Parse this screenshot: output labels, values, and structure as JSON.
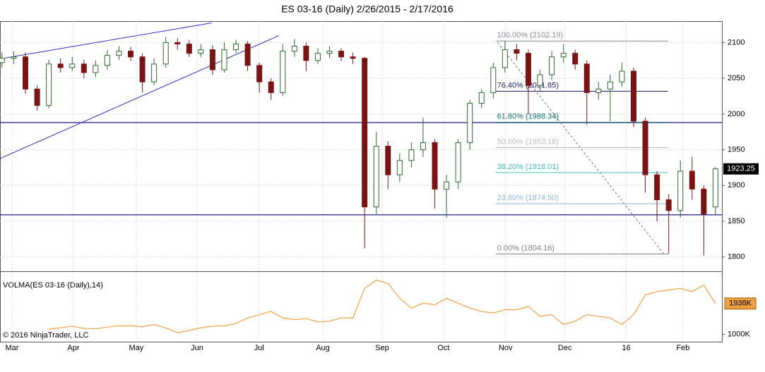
{
  "chart_data": [
    {
      "type": "candlestick",
      "title": "ES 03-16 (Daily)  2/26/2015 - 2/17/2016",
      "up_color": "#2a6a2a",
      "down_color": "#7a1414",
      "xlim": [
        -0.7,
        246.2
      ],
      "x": [
        0,
        4,
        8,
        12,
        16,
        20,
        24,
        28,
        32,
        36,
        40,
        44,
        48,
        52,
        56,
        60,
        64,
        68,
        72,
        76,
        80,
        84,
        88,
        92,
        96,
        100,
        104,
        108,
        112,
        116,
        120,
        124,
        128,
        132,
        136,
        140,
        144,
        148,
        152,
        156,
        160,
        164,
        168,
        172,
        176,
        180,
        184,
        188,
        192,
        196,
        200,
        204,
        208,
        212,
        216,
        220,
        224,
        228,
        232,
        236,
        240,
        244
      ],
      "open": [
        2072,
        2078,
        2080,
        2035,
        2012,
        2070,
        2065,
        2070,
        2058,
        2068,
        2082,
        2088,
        2080,
        2045,
        2070,
        2100,
        2098,
        2085,
        2090,
        2062,
        2090,
        2098,
        2068,
        2045,
        2030,
        2088,
        2095,
        2075,
        2085,
        2088,
        2080,
        2078,
        1870,
        1955,
        1915,
        1935,
        1950,
        1960,
        1895,
        1905,
        1960,
        2015,
        2030,
        2065,
        2090,
        2085,
        2040,
        2055,
        2080,
        2085,
        2070,
        2030,
        2035,
        2045,
        2060,
        1990,
        1915,
        1880,
        1865,
        1920,
        1895,
        1870
      ],
      "high": [
        2086,
        2088,
        2086,
        2040,
        2076,
        2078,
        2080,
        2076,
        2075,
        2090,
        2095,
        2094,
        2085,
        2078,
        2108,
        2106,
        2104,
        2098,
        2096,
        2100,
        2104,
        2102,
        2072,
        2050,
        2098,
        2105,
        2100,
        2092,
        2095,
        2092,
        2086,
        2080,
        1975,
        1962,
        1945,
        1960,
        1995,
        1965,
        1915,
        1965,
        2020,
        2035,
        2072,
        2102.19,
        2098,
        2090,
        2062,
        2088,
        2098,
        2090,
        2075,
        2045,
        2055,
        2072,
        2065,
        1995,
        1920,
        1888,
        1935,
        1940,
        1900,
        1926
      ],
      "low": [
        2065,
        2070,
        2028,
        2005,
        2008,
        2058,
        2060,
        2050,
        2052,
        2062,
        2076,
        2074,
        2030,
        2040,
        2065,
        2090,
        2080,
        2080,
        2055,
        2058,
        2085,
        2060,
        2030,
        2020,
        2025,
        2080,
        2060,
        2070,
        2078,
        2074,
        2070,
        1812,
        1860,
        1895,
        1905,
        1925,
        1940,
        1868,
        1855,
        1895,
        1950,
        2008,
        2022,
        2058,
        2075,
        2000,
        2032,
        2048,
        2072,
        2062,
        1985,
        2020,
        1990,
        2038,
        1982,
        1890,
        1850,
        1804.16,
        1855,
        1880,
        1802,
        1860
      ],
      "close": [
        2078,
        2080,
        2035,
        2012,
        2070,
        2065,
        2070,
        2058,
        2068,
        2082,
        2088,
        2080,
        2045,
        2070,
        2100,
        2098,
        2085,
        2090,
        2062,
        2090,
        2098,
        2068,
        2045,
        2030,
        2088,
        2095,
        2075,
        2085,
        2088,
        2080,
        2078,
        1870,
        1955,
        1915,
        1935,
        1950,
        1960,
        1895,
        1905,
        1960,
        2015,
        2030,
        2065,
        2090,
        2085,
        2040,
        2055,
        2080,
        2085,
        2070,
        2030,
        2035,
        2045,
        2060,
        1990,
        1915,
        1880,
        1865,
        1920,
        1895,
        1860,
        1923.25
      ],
      "ylim": [
        1780,
        2130
      ],
      "yticks": [
        1800,
        1850,
        1900,
        1950,
        2000,
        2050,
        2100
      ],
      "grid": true,
      "hlines": [
        {
          "y": 1988,
          "color": "#1a1a8a"
        },
        {
          "y": 1859,
          "color": "#1a1a8a"
        }
      ],
      "trendlines": [
        {
          "x": [
            -0.7,
            94.7
          ],
          "y": [
            1937.7,
            2109.8
          ],
          "color": "#3030c0"
        },
        {
          "x": [
            1,
            71.7
          ],
          "y": [
            2078.4,
            2127.5
          ],
          "color": "#3030c0"
        },
        {
          "x": [
            169.5,
            226.3
          ],
          "y": [
            2100,
            1804.16
          ],
          "color": "#707070"
        }
      ],
      "fib_range": [
        168.8,
        227.8
      ],
      "fib_levels": [
        {
          "label": "100.00% (2102.19)",
          "price": 2102.19,
          "color": "#8a8aa0"
        },
        {
          "label": "76.40% (2031.85)",
          "price": 2031.85,
          "color": "#20206a"
        },
        {
          "label": "61.80% (1988.34)",
          "price": 1988.34,
          "color": "#107070"
        },
        {
          "label": "50.00% (1953.18)",
          "price": 1953.18,
          "color": "#b8b8b8"
        },
        {
          "label": "38.20% (1918.01)",
          "price": 1918.01,
          "color": "#40bcc0"
        },
        {
          "label": "23.60% (1874.50)",
          "price": 1874.5,
          "color": "#88b4d4"
        },
        {
          "label": "0.00% (1804.16)",
          "price": 1804.16,
          "color": "#808080"
        }
      ]
    },
    {
      "type": "line",
      "title": "VOLMA(ES 03-16 (Daily),14)",
      "footer": "© 2016 NinjaTrader, LLC",
      "color": "#f0a040",
      "xlim": [
        -0.7,
        246.2
      ],
      "x": [
        0,
        4,
        8,
        12,
        16,
        20,
        24,
        28,
        32,
        36,
        40,
        44,
        48,
        52,
        56,
        60,
        64,
        68,
        72,
        76,
        80,
        84,
        88,
        92,
        96,
        100,
        104,
        108,
        112,
        116,
        120,
        124,
        128,
        132,
        136,
        140,
        144,
        148,
        152,
        156,
        160,
        164,
        168,
        172,
        176,
        180,
        184,
        188,
        192,
        196,
        200,
        204,
        208,
        212,
        216,
        220,
        224,
        228,
        232,
        236,
        240,
        244
      ],
      "values": [
        null,
        null,
        null,
        null,
        1160,
        1200,
        1250,
        1180,
        1170,
        1220,
        1260,
        1260,
        1230,
        1300,
        1200,
        1050,
        1120,
        1200,
        1250,
        1260,
        1330,
        1500,
        1600,
        1700,
        1500,
        1450,
        1480,
        1380,
        1400,
        1500,
        1500,
        2400,
        2650,
        2550,
        2100,
        1800,
        1950,
        1900,
        2100,
        1950,
        1800,
        1700,
        1650,
        1750,
        1750,
        1850,
        1550,
        1600,
        1300,
        1400,
        1600,
        1550,
        1500,
        1300,
        1600,
        2200,
        2300,
        2350,
        2400,
        2300,
        2500,
        1938
      ],
      "last_value_label": "1938K",
      "ylim": [
        777,
        2899
      ],
      "yticks": [
        {
          "value": 1000,
          "label": "1000K"
        }
      ],
      "xticks": [
        {
          "value": 3.4,
          "label": "Mar"
        },
        {
          "value": 24.4,
          "label": "Apr"
        },
        {
          "value": 45.9,
          "label": "May"
        },
        {
          "value": 66.7,
          "label": "Jun"
        },
        {
          "value": 87.9,
          "label": "Jul"
        },
        {
          "value": 109.7,
          "label": "Aug"
        },
        {
          "value": 130,
          "label": "Sep"
        },
        {
          "value": 151,
          "label": "Oct"
        },
        {
          "value": 172.2,
          "label": "Nov"
        },
        {
          "value": 192.5,
          "label": "Dec"
        },
        {
          "value": 213.5,
          "label": "16"
        },
        {
          "value": 232.9,
          "label": "Feb"
        }
      ]
    }
  ]
}
